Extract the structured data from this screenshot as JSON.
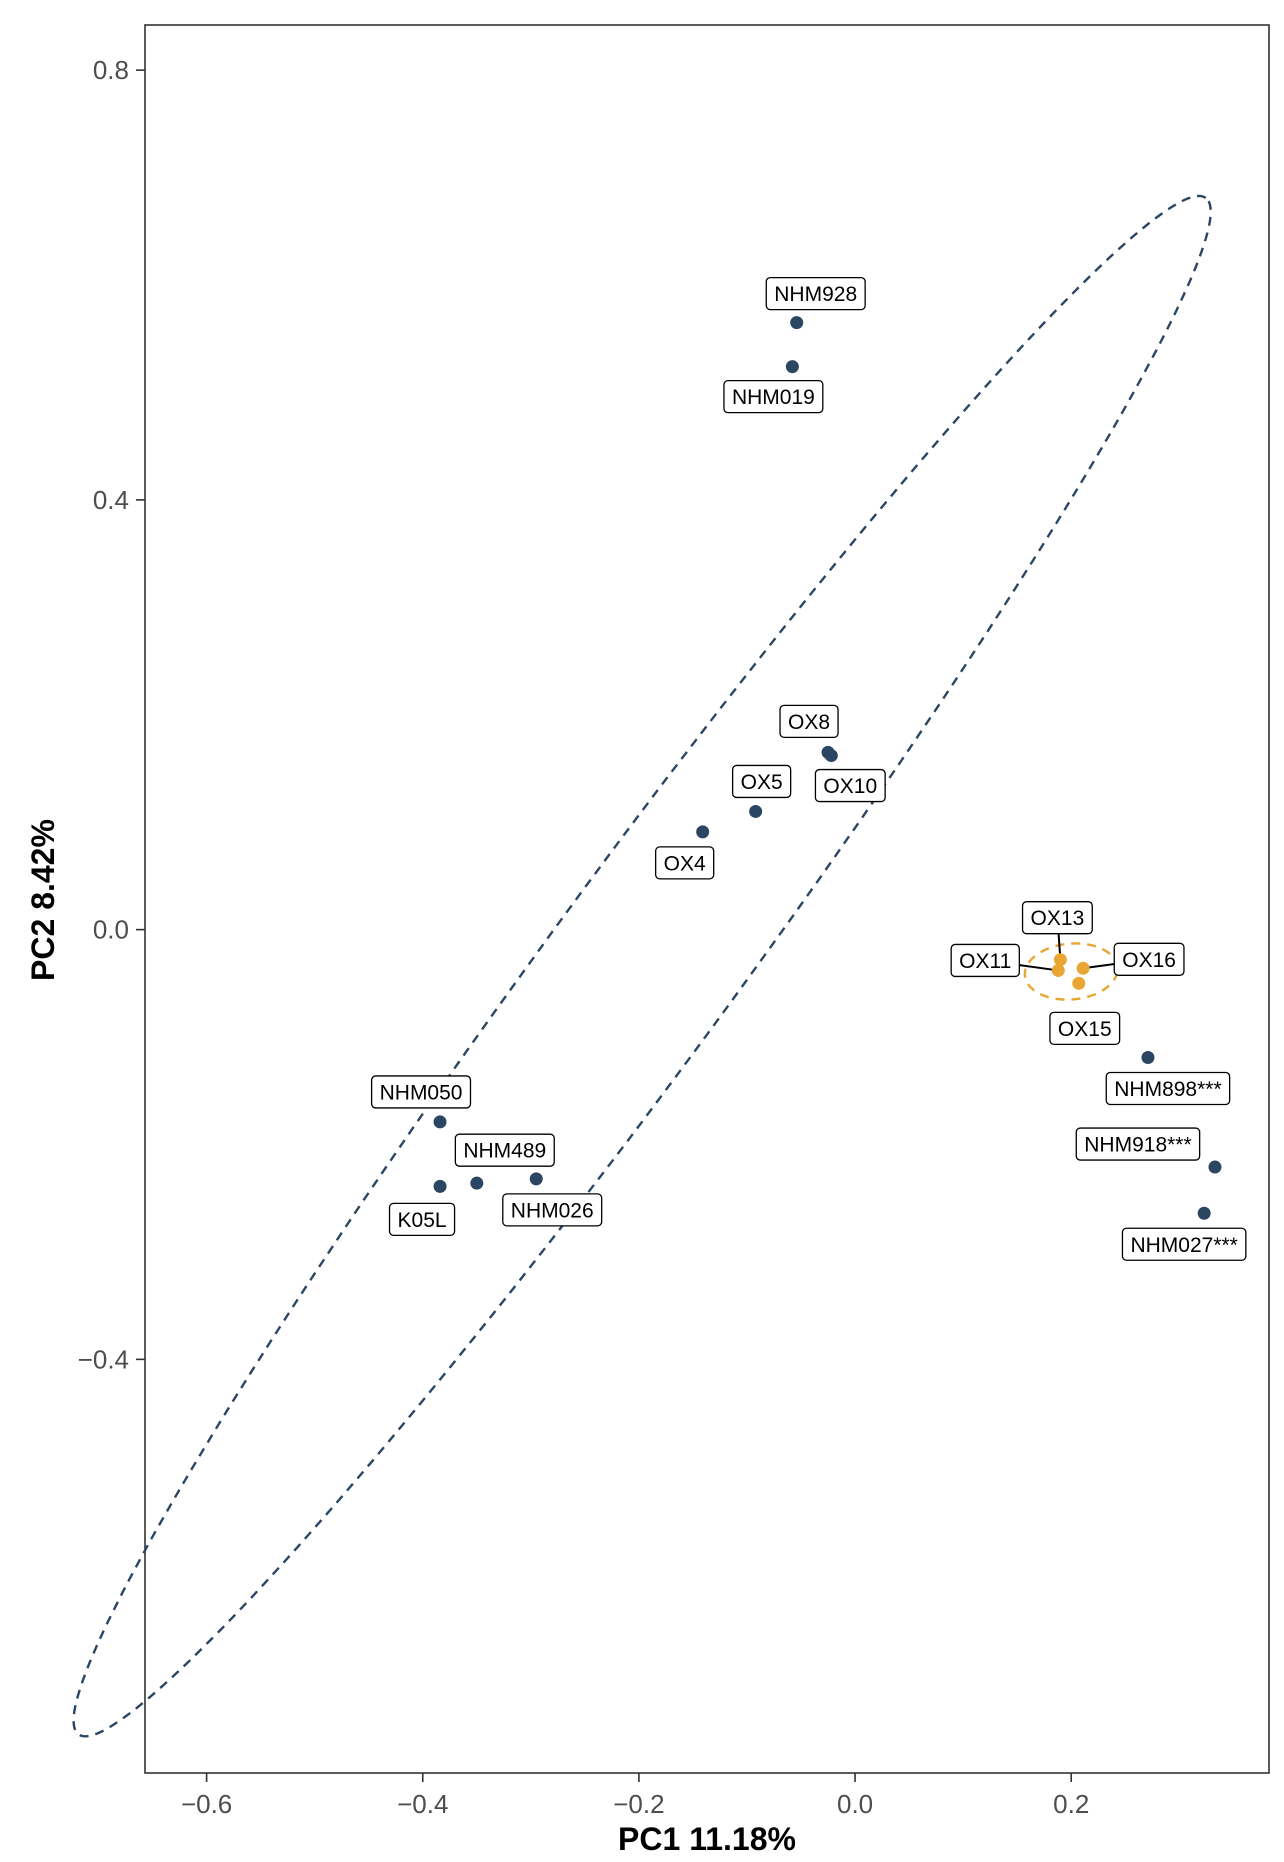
{
  "chart_data": {
    "type": "scatter",
    "xlabel": "PC1 11.18%",
    "ylabel": "PC2 8.42%",
    "xlim": [
      -0.657,
      0.383
    ],
    "ylim": [
      -0.785,
      0.842
    ],
    "x_ticks": [
      -0.6,
      -0.4,
      -0.2,
      0.0,
      0.2
    ],
    "x_tick_labels": [
      "−0.6",
      "−0.4",
      "−0.2",
      "0.0",
      "0.2"
    ],
    "y_ticks": [
      0.8,
      0.4,
      0.0,
      -0.4
    ],
    "y_tick_labels": [
      "0.8",
      "0.4",
      "0.0",
      "−0.4"
    ],
    "grid": false,
    "legend": "none",
    "series": [
      {
        "color": "#2b4663",
        "points": [
          {
            "label": "NHM928",
            "x": -0.054,
            "y": 0.565
          },
          {
            "label": "NHM019",
            "x": -0.058,
            "y": 0.524
          },
          {
            "label": "OX8",
            "x": -0.025,
            "y": 0.165
          },
          {
            "label": "OX10",
            "x": -0.022,
            "y": 0.162
          },
          {
            "label": "OX5",
            "x": -0.092,
            "y": 0.11
          },
          {
            "label": "OX4",
            "x": -0.141,
            "y": 0.091
          },
          {
            "label": "NHM050",
            "x": -0.384,
            "y": -0.179
          },
          {
            "label": "NHM489",
            "x": -0.35,
            "y": -0.236
          },
          {
            "label": "NHM026",
            "x": -0.295,
            "y": -0.232
          },
          {
            "label": "K05L",
            "x": -0.384,
            "y": -0.239
          },
          {
            "label": "NHM898***",
            "x": 0.271,
            "y": -0.119
          },
          {
            "label": "NHM918***",
            "x": 0.333,
            "y": -0.221
          },
          {
            "label": "NHM027***",
            "x": 0.323,
            "y": -0.264
          }
        ],
        "ellipse": {
          "cx": -0.197,
          "cy": -0.034,
          "rx": 0.885,
          "ry": 0.086,
          "angle_deg": 53.9
        }
      },
      {
        "color": "#e8a633",
        "points": [
          {
            "label": "OX13",
            "x": 0.19,
            "y": -0.028
          },
          {
            "label": "OX11",
            "x": 0.188,
            "y": -0.038
          },
          {
            "label": "OX16",
            "x": 0.211,
            "y": -0.036
          },
          {
            "label": "OX15",
            "x": 0.207,
            "y": -0.05
          }
        ],
        "ellipse": {
          "cx": 0.2,
          "cy": -0.039,
          "rx": 0.043,
          "ry": 0.026,
          "angle_deg": 5
        }
      }
    ]
  }
}
